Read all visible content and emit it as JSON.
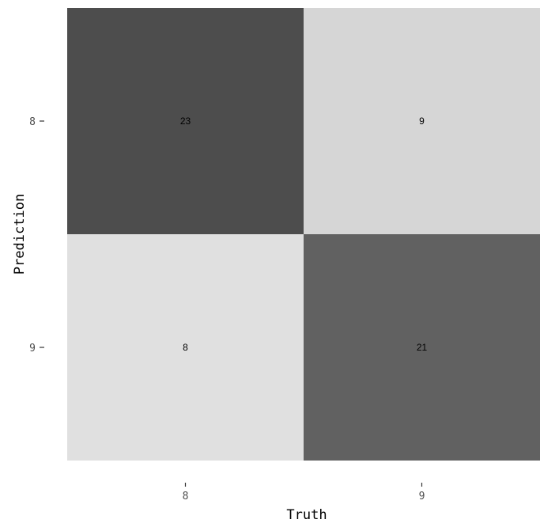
{
  "chart_data": {
    "type": "heatmap",
    "title": "",
    "xlabel": "Truth",
    "ylabel": "Prediction",
    "x_categories": [
      "8",
      "9"
    ],
    "y_categories": [
      "8",
      "9"
    ],
    "cells": [
      {
        "truth": "8",
        "prediction": "8",
        "value": 23
      },
      {
        "truth": "9",
        "prediction": "8",
        "value": 9
      },
      {
        "truth": "8",
        "prediction": "9",
        "value": 8
      },
      {
        "truth": "9",
        "prediction": "9",
        "value": 21
      }
    ],
    "color_scale": {
      "low": "#e0e0e0",
      "high": "#4d4d4d"
    },
    "grid": false,
    "legend": "none"
  }
}
